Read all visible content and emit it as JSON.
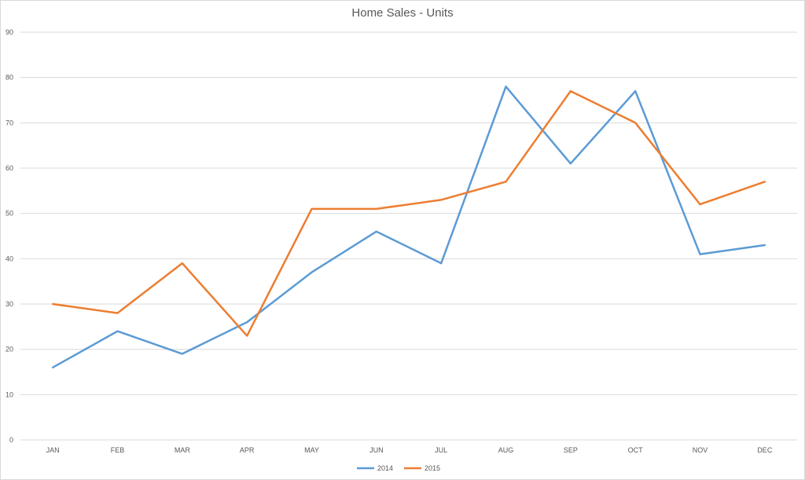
{
  "chart_data": {
    "type": "line",
    "title": "Home Sales - Units",
    "xlabel": "",
    "ylabel": "",
    "categories": [
      "JAN",
      "FEB",
      "MAR",
      "APR",
      "MAY",
      "JUN",
      "JUL",
      "AUG",
      "SEP",
      "OCT",
      "NOV",
      "DEC"
    ],
    "ylim": [
      0,
      90
    ],
    "yticks": [
      "0",
      "10",
      "20",
      "30",
      "40",
      "50",
      "60",
      "70",
      "80",
      "90"
    ],
    "grid": true,
    "legend_position": "bottom",
    "series": [
      {
        "name": "2014",
        "color": "#5b9bd5",
        "values": [
          16,
          24,
          19,
          26,
          37,
          46,
          39,
          78,
          61,
          77,
          41,
          43
        ]
      },
      {
        "name": "2015",
        "color": "#ed7d31",
        "values": [
          30,
          28,
          39,
          23,
          51,
          51,
          53,
          57,
          77,
          70,
          52,
          57
        ]
      }
    ]
  }
}
